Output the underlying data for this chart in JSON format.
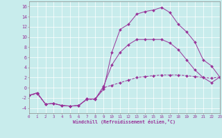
{
  "xlabel": "Windchill (Refroidissement éolien,°C)",
  "xlim": [
    0,
    23
  ],
  "ylim": [
    -5,
    17
  ],
  "xtick_vals": [
    0,
    1,
    2,
    3,
    4,
    5,
    6,
    7,
    8,
    9,
    10,
    11,
    12,
    13,
    14,
    15,
    16,
    17,
    18,
    19,
    20,
    21,
    22,
    23
  ],
  "ytick_vals": [
    -4,
    -2,
    0,
    2,
    4,
    6,
    8,
    10,
    12,
    14,
    16
  ],
  "bg_color": "#c8ecec",
  "line_color": "#993399",
  "curve1_x": [
    0,
    1,
    2,
    3,
    4,
    5,
    6,
    7,
    8,
    9,
    10,
    11,
    12,
    13,
    14,
    15,
    16,
    17,
    18,
    19,
    20,
    21,
    22,
    23
  ],
  "curve1_y": [
    -1.5,
    -1.0,
    -3.2,
    -3.1,
    -3.5,
    -3.6,
    -3.5,
    -2.2,
    -2.2,
    -0.3,
    7.0,
    11.5,
    12.5,
    14.5,
    15.0,
    15.3,
    15.8,
    14.8,
    12.5,
    11.0,
    9.0,
    5.5,
    4.3,
    2.1
  ],
  "curve2_x": [
    0,
    1,
    2,
    3,
    4,
    5,
    6,
    7,
    8,
    9,
    10,
    11,
    12,
    13,
    14,
    15,
    16,
    17,
    18,
    19,
    20,
    21,
    22,
    23
  ],
  "curve2_y": [
    -1.5,
    -1.0,
    -3.2,
    -3.1,
    -3.5,
    -3.6,
    -3.5,
    -2.2,
    -2.2,
    0.3,
    4.5,
    7.0,
    8.5,
    9.5,
    9.5,
    9.5,
    9.5,
    8.8,
    7.5,
    5.5,
    3.5,
    2.0,
    1.0,
    2.1
  ],
  "curve3_x": [
    0,
    1,
    2,
    3,
    4,
    5,
    6,
    7,
    8,
    9,
    10,
    11,
    12,
    13,
    14,
    15,
    16,
    17,
    18,
    19,
    20,
    21,
    22,
    23
  ],
  "curve3_y": [
    -1.5,
    -1.2,
    -3.2,
    -3.1,
    -3.5,
    -3.6,
    -3.5,
    -2.3,
    -2.3,
    0.0,
    0.5,
    1.0,
    1.5,
    2.0,
    2.2,
    2.4,
    2.5,
    2.5,
    2.5,
    2.4,
    2.2,
    2.0,
    1.9,
    2.1
  ]
}
